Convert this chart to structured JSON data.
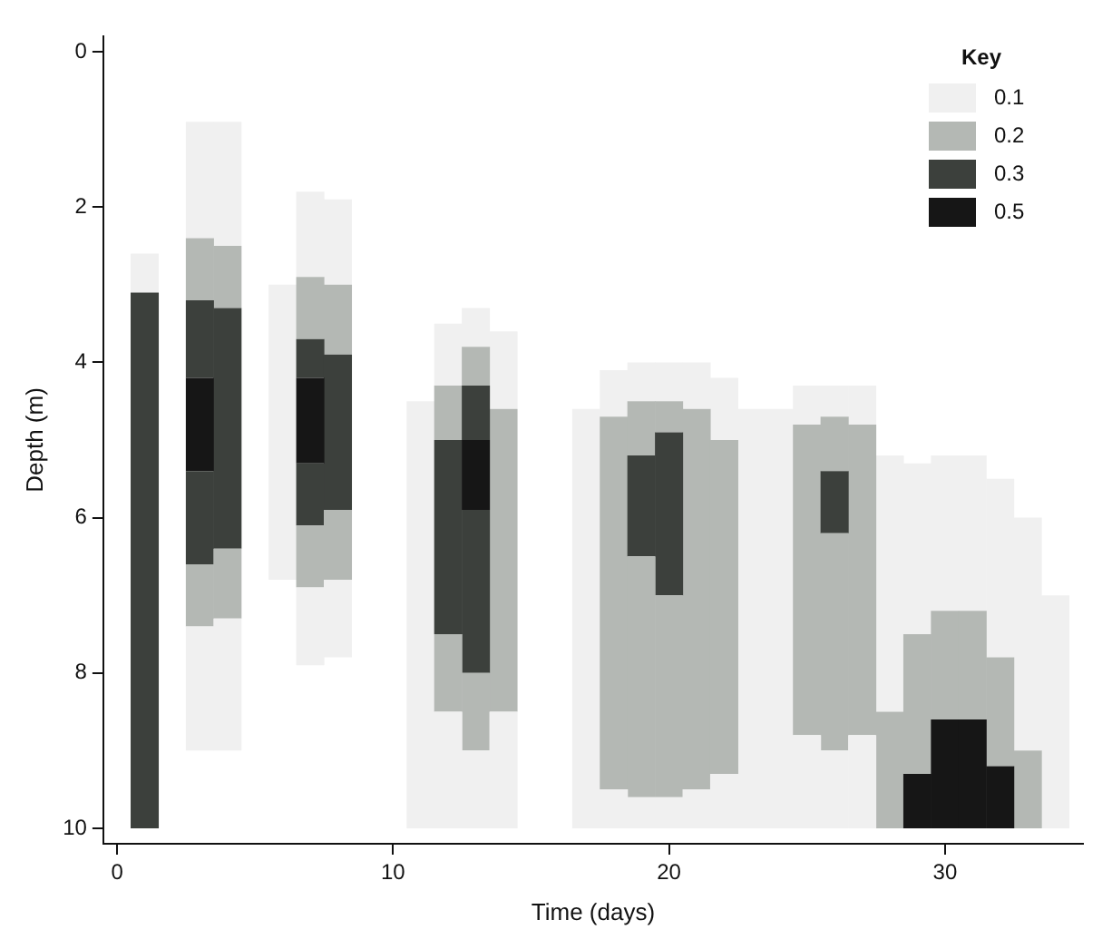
{
  "chart_data": {
    "type": "bar",
    "xlabel": "Time (days)",
    "ylabel": "Depth (m)",
    "legend_title": "Key",
    "legend": "top right",
    "x": [
      1,
      2,
      3,
      4,
      5,
      6,
      7,
      8,
      9,
      10,
      11,
      12,
      13,
      14,
      15,
      16,
      17,
      18,
      19,
      20,
      21,
      22,
      23,
      24,
      25,
      26,
      27,
      28,
      29,
      30,
      31,
      32,
      33,
      34
    ],
    "xlim": [
      -0.5,
      35
    ],
    "xticks": [
      0,
      10,
      20,
      30
    ],
    "ylim": [
      10.2,
      -0.2
    ],
    "yticks": [
      0,
      2,
      4,
      6,
      8,
      10
    ],
    "series": [
      {
        "name": "0.1",
        "color": "#f0f0f0",
        "base": [
          2.6,
          null,
          0.9,
          0.9,
          null,
          3.0,
          1.8,
          1.9,
          null,
          null,
          4.5,
          3.5,
          3.3,
          3.6,
          null,
          null,
          4.6,
          4.1,
          4.0,
          4.0,
          4.0,
          4.2,
          4.6,
          4.6,
          4.3,
          4.3,
          4.3,
          5.2,
          5.3,
          5.2,
          5.2,
          5.5,
          6.0,
          7.0
        ],
        "values": [
          0.5,
          null,
          1.5,
          1.6,
          null,
          3.8,
          1.1,
          1.1,
          null,
          null,
          5.5,
          0.8,
          0.5,
          1.0,
          null,
          null,
          5.4,
          0.6,
          0.5,
          0.5,
          0.6,
          0.8,
          5.4,
          5.4,
          0.5,
          0.4,
          0.5,
          3.3,
          2.2,
          2.0,
          2.0,
          2.3,
          3.0,
          3.0
        ]
      },
      {
        "name": "0.2",
        "color": "#b4b8b4",
        "base": [
          null,
          null,
          2.4,
          2.5,
          null,
          null,
          2.9,
          3.0,
          null,
          null,
          null,
          4.3,
          3.8,
          4.6,
          null,
          null,
          null,
          4.7,
          4.5,
          4.5,
          4.6,
          5.0,
          null,
          null,
          4.8,
          4.7,
          4.8,
          8.5,
          7.5,
          7.2,
          7.2,
          7.8,
          9.0,
          null
        ],
        "values": [
          null,
          null,
          0.8,
          0.8,
          null,
          null,
          0.8,
          0.9,
          null,
          null,
          null,
          0.7,
          0.5,
          3.9,
          null,
          null,
          null,
          4.8,
          0.7,
          0.4,
          4.9,
          4.3,
          null,
          null,
          4.0,
          0.7,
          4.0,
          1.5,
          1.8,
          1.4,
          1.4,
          1.4,
          1.0,
          null
        ]
      },
      {
        "name": "0.3",
        "color": "#3c403c",
        "base": [
          3.1,
          null,
          3.2,
          3.3,
          null,
          null,
          3.7,
          3.9,
          null,
          null,
          null,
          5.0,
          4.3,
          null,
          null,
          null,
          null,
          null,
          5.2,
          4.9,
          null,
          null,
          null,
          null,
          null,
          5.4,
          null,
          null,
          null,
          null,
          null,
          null,
          null,
          null
        ],
        "values": [
          6.9,
          null,
          1.0,
          3.1,
          null,
          null,
          0.5,
          2.0,
          null,
          null,
          null,
          2.5,
          0.7,
          null,
          null,
          null,
          null,
          null,
          1.3,
          2.1,
          null,
          null,
          null,
          null,
          null,
          0.8,
          null,
          null,
          null,
          null,
          null,
          null,
          null,
          null
        ]
      },
      {
        "name": "0.5",
        "color": "#161616",
        "base": [
          null,
          null,
          4.2,
          null,
          null,
          null,
          4.2,
          null,
          null,
          null,
          null,
          null,
          5.0,
          null,
          null,
          null,
          null,
          null,
          null,
          null,
          null,
          null,
          null,
          null,
          null,
          null,
          null,
          null,
          9.3,
          8.6,
          8.6,
          9.2,
          null,
          null
        ],
        "values": [
          null,
          null,
          1.2,
          null,
          null,
          null,
          1.1,
          null,
          null,
          null,
          null,
          null,
          0.9,
          null,
          null,
          null,
          null,
          null,
          null,
          null,
          null,
          null,
          null,
          null,
          null,
          null,
          null,
          null,
          0.7,
          1.4,
          1.4,
          0.8,
          null,
          null
        ]
      },
      {
        "color": "#3c403c",
        "base": [
          null,
          null,
          5.4,
          null,
          null,
          null,
          5.3,
          null,
          null,
          null,
          null,
          null,
          5.9,
          null,
          null,
          null,
          null,
          null,
          null,
          null,
          null,
          null,
          null,
          null,
          null,
          null,
          null,
          null,
          null,
          null,
          null,
          null,
          null,
          null
        ],
        "values": [
          null,
          null,
          1.2,
          null,
          null,
          null,
          0.8,
          null,
          null,
          null,
          null,
          null,
          2.1,
          null,
          null,
          null,
          null,
          null,
          null,
          null,
          null,
          null,
          null,
          null,
          null,
          null,
          null,
          null,
          null,
          null,
          null,
          null,
          null,
          null
        ]
      },
      {
        "color": "#b4b8b4",
        "base": [
          null,
          null,
          6.6,
          6.4,
          null,
          null,
          6.1,
          5.9,
          null,
          null,
          null,
          7.5,
          8.0,
          null,
          null,
          null,
          null,
          null,
          6.5,
          7.0,
          null,
          null,
          null,
          null,
          null,
          6.2,
          null,
          null,
          null,
          null,
          null,
          null,
          null,
          null
        ],
        "values": [
          null,
          null,
          0.8,
          0.9,
          null,
          null,
          0.8,
          0.9,
          null,
          null,
          null,
          1.0,
          1.0,
          null,
          null,
          null,
          null,
          null,
          3.1,
          2.6,
          null,
          null,
          null,
          null,
          null,
          2.8,
          null,
          null,
          null,
          null,
          null,
          null,
          null,
          null
        ]
      },
      {
        "color": "#f0f0f0",
        "base": [
          null,
          null,
          7.4,
          7.3,
          null,
          null,
          6.9,
          6.8,
          null,
          null,
          null,
          8.5,
          9.0,
          8.5,
          null,
          null,
          null,
          9.5,
          9.6,
          9.6,
          9.5,
          9.3,
          null,
          null,
          8.8,
          9.0,
          8.8,
          null,
          null,
          null,
          null,
          null,
          null,
          null
        ],
        "values": [
          null,
          null,
          1.6,
          1.7,
          null,
          null,
          1.0,
          1.0,
          null,
          null,
          null,
          1.5,
          1.0,
          1.5,
          null,
          null,
          null,
          0.5,
          0.4,
          0.4,
          0.5,
          0.7,
          null,
          null,
          1.2,
          1.0,
          1.2,
          null,
          null,
          null,
          null,
          null,
          null,
          null
        ]
      }
    ]
  }
}
